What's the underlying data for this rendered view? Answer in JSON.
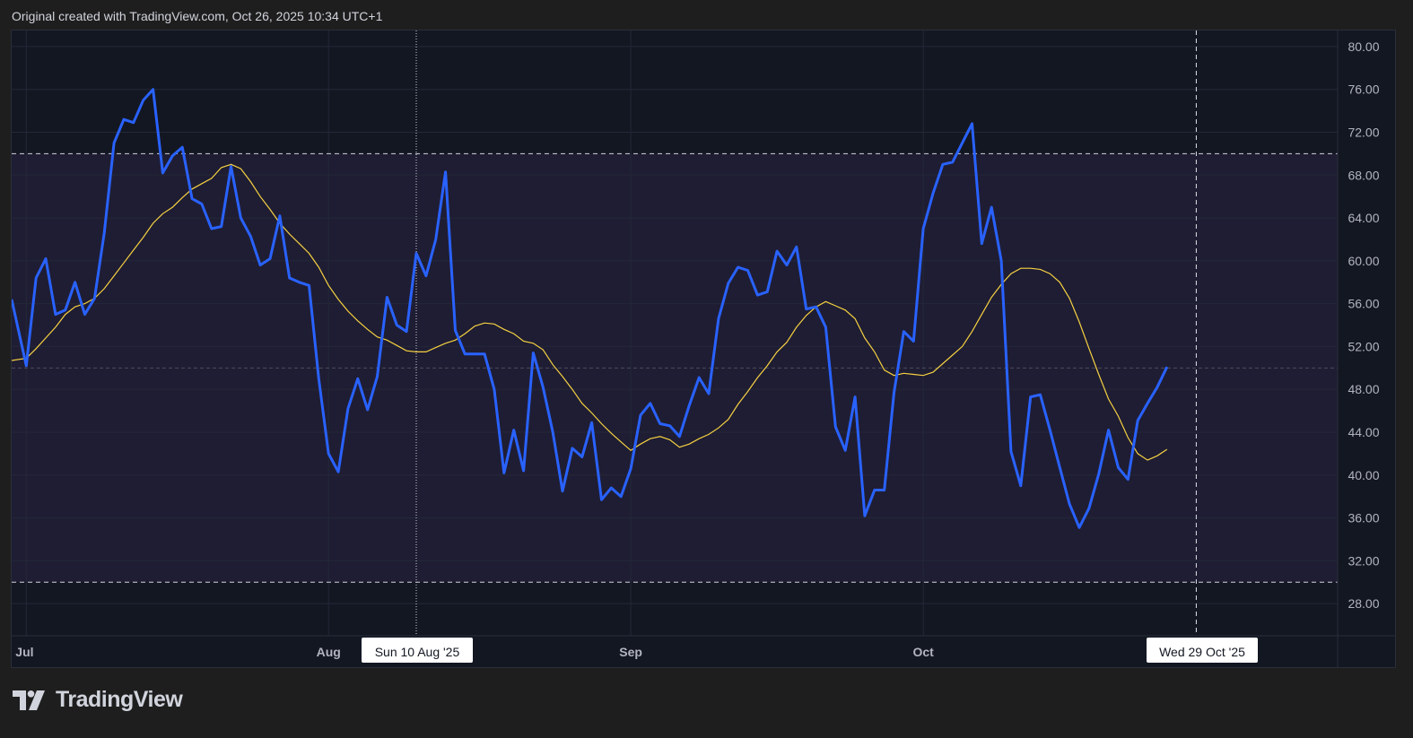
{
  "header": {
    "text": "Original created with TradingView.com, Oct 26, 2025 10:34 UTC+1"
  },
  "logo": {
    "text": "TradingView"
  },
  "crosshair": {
    "label_left": "Sun 10 Aug '25",
    "label_right": "Wed 29 Oct '25"
  },
  "colors": {
    "background": "#131722",
    "band": "#1f1d33",
    "main_line": "#2962ff",
    "ma_line": "#f5d142",
    "grid": "#232838",
    "axis_text": "#b2b5be"
  },
  "chart_data": {
    "type": "line",
    "title": "",
    "xlabel": "",
    "ylabel": "",
    "ylim": [
      25.0,
      81.5
    ],
    "y_ticks": [
      "80.00",
      "76.00",
      "72.00",
      "68.00",
      "64.00",
      "60.00",
      "56.00",
      "52.00",
      "48.00",
      "44.00",
      "40.00",
      "36.00",
      "32.00",
      "28.00"
    ],
    "x_ticks": [
      "Jul",
      "Aug",
      "Sep",
      "Oct"
    ],
    "x_tick_days": [
      1,
      32,
      63,
      93
    ],
    "x_range_days": [
      -0.5,
      135.5
    ],
    "reference_levels": [
      70,
      50,
      30
    ],
    "band": [
      30,
      70
    ],
    "crosshair_days": [
      41,
      121
    ],
    "series": [
      {
        "style": "main",
        "x_days": [
          -0.5,
          1,
          2,
          3,
          4,
          5,
          6,
          7,
          8,
          9,
          10,
          11,
          12,
          13,
          14,
          15,
          16,
          17,
          18,
          19,
          20,
          21,
          22,
          23,
          24,
          25,
          26,
          27,
          28,
          29,
          30,
          31,
          32,
          33,
          34,
          35,
          36,
          37,
          38,
          39,
          40,
          41,
          42,
          43,
          44,
          45,
          46,
          47,
          48,
          49,
          50,
          51,
          52,
          53,
          54,
          55,
          56,
          57,
          58,
          59,
          60,
          61,
          62,
          63,
          64,
          65,
          66,
          67,
          68,
          69,
          70,
          71,
          72,
          73,
          74,
          75,
          76,
          77,
          78,
          79,
          80,
          81,
          82,
          83,
          84,
          85,
          86,
          87,
          88,
          89,
          90,
          91,
          92,
          93,
          94,
          95,
          96,
          97,
          98,
          99,
          100,
          101,
          102,
          103,
          104,
          105,
          106,
          107,
          108,
          109,
          110,
          111,
          112,
          113,
          114,
          115,
          116,
          117,
          118
        ],
        "values": [
          56.4,
          50.2,
          58.4,
          60.2,
          55.0,
          55.4,
          58.0,
          55.0,
          56.5,
          62.6,
          71.0,
          73.2,
          72.9,
          75.0,
          76.0,
          68.2,
          69.8,
          70.6,
          65.8,
          65.3,
          63.0,
          63.2,
          68.8,
          64.0,
          62.3,
          59.6,
          60.2,
          64.2,
          58.4,
          58.0,
          57.7,
          49.0,
          42.0,
          40.3,
          46.2,
          49.0,
          46.1,
          49.2,
          56.6,
          54.0,
          53.4,
          60.7,
          58.6,
          62.0,
          68.3,
          53.5,
          51.3,
          51.3,
          51.3,
          48.0,
          40.2,
          44.2,
          40.4,
          51.4,
          48.2,
          44.0,
          38.5,
          42.5,
          41.7,
          44.9,
          37.7,
          38.8,
          38.0,
          40.6,
          45.6,
          46.7,
          44.8,
          44.6,
          43.6,
          46.5,
          49.1,
          47.6,
          54.6,
          57.9,
          59.4,
          59.1,
          56.8,
          57.1,
          60.9,
          59.6,
          61.3,
          55.5,
          55.7,
          53.8,
          44.5,
          42.3,
          47.3,
          36.2,
          38.6,
          38.6,
          47.7,
          53.4,
          52.5,
          63.0,
          66.3,
          69.0,
          69.2,
          71.0,
          72.8,
          61.6,
          65.0,
          60.0,
          42.2,
          39.0,
          47.3,
          47.5,
          44.2,
          40.7,
          37.3,
          35.1,
          36.9,
          40.1,
          44.2,
          40.7,
          39.6,
          45.1,
          46.7,
          48.2,
          50.1
        ]
      },
      {
        "style": "ma",
        "x_days": [
          -0.5,
          1,
          2,
          3,
          4,
          5,
          6,
          7,
          8,
          9,
          10,
          11,
          12,
          13,
          14,
          15,
          16,
          17,
          18,
          19,
          20,
          21,
          22,
          23,
          24,
          25,
          26,
          27,
          28,
          29,
          30,
          31,
          32,
          33,
          34,
          35,
          36,
          37,
          38,
          39,
          40,
          41,
          42,
          43,
          44,
          45,
          46,
          47,
          48,
          49,
          50,
          51,
          52,
          53,
          54,
          55,
          56,
          57,
          58,
          59,
          60,
          61,
          62,
          63,
          64,
          65,
          66,
          67,
          68,
          69,
          70,
          71,
          72,
          73,
          74,
          75,
          76,
          77,
          78,
          79,
          80,
          81,
          82,
          83,
          84,
          85,
          86,
          87,
          88,
          89,
          90,
          91,
          92,
          93,
          94,
          95,
          96,
          97,
          98,
          99,
          100,
          101,
          102,
          103,
          104,
          105,
          106,
          107,
          108,
          109,
          110,
          111,
          112,
          113,
          114,
          115,
          116,
          117,
          118
        ],
        "values": [
          50.7,
          50.9,
          51.8,
          52.8,
          53.8,
          55.0,
          55.7,
          56.0,
          56.5,
          57.4,
          58.6,
          59.8,
          61.0,
          62.2,
          63.5,
          64.4,
          65.0,
          65.9,
          66.7,
          67.2,
          67.7,
          68.7,
          69.0,
          68.6,
          67.4,
          66.0,
          64.8,
          63.5,
          62.5,
          61.6,
          60.7,
          59.4,
          57.7,
          56.4,
          55.3,
          54.4,
          53.6,
          52.9,
          52.6,
          52.1,
          51.6,
          51.5,
          51.5,
          51.9,
          52.3,
          52.6,
          53.2,
          53.9,
          54.2,
          54.1,
          53.6,
          53.2,
          52.5,
          52.3,
          51.7,
          50.3,
          49.2,
          48.0,
          46.7,
          45.8,
          44.8,
          43.9,
          43.1,
          42.3,
          42.9,
          43.4,
          43.6,
          43.3,
          42.6,
          42.9,
          43.4,
          43.8,
          44.4,
          45.2,
          46.6,
          47.8,
          49.1,
          50.2,
          51.5,
          52.4,
          53.8,
          54.9,
          55.7,
          56.2,
          55.8,
          55.4,
          54.6,
          52.8,
          51.5,
          49.8,
          49.3,
          49.5,
          49.4,
          49.3,
          49.6,
          50.4,
          51.2,
          52.0,
          53.4,
          55.0,
          56.6,
          57.8,
          58.8,
          59.3,
          59.3,
          59.2,
          58.8,
          58.0,
          56.5,
          54.3,
          51.8,
          49.4,
          47.1,
          45.5,
          43.5,
          42.0,
          41.4,
          41.8,
          42.4
        ]
      }
    ]
  }
}
